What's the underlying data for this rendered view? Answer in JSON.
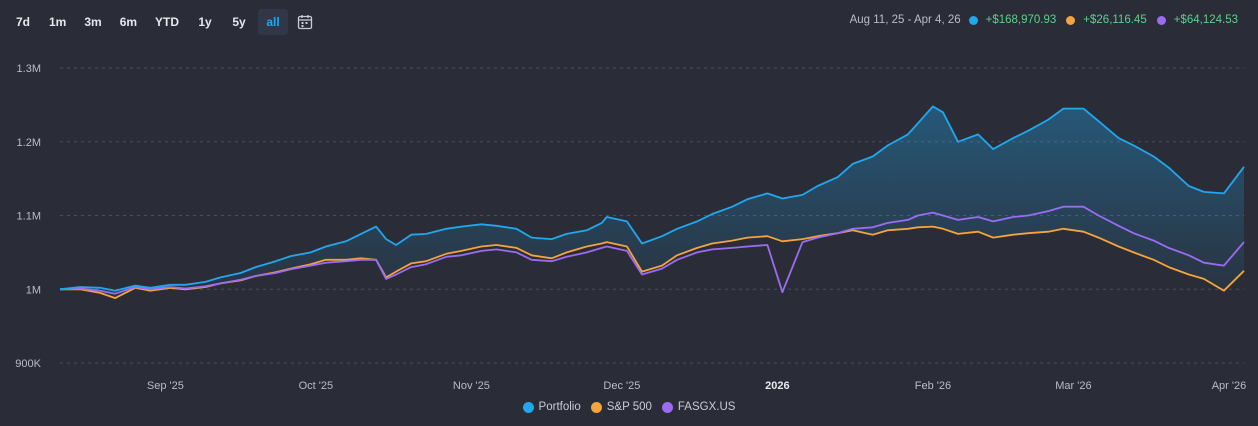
{
  "toolbar": {
    "ranges": [
      "7d",
      "1m",
      "3m",
      "6m",
      "YTD",
      "1y",
      "5y",
      "all"
    ],
    "active": "all",
    "calendar_icon": "calendar-icon"
  },
  "summary": {
    "date_range": "Aug 11, 25 - Apr 4, 26",
    "items": [
      {
        "value": "+$168,970.93",
        "color": "#1fa8ee"
      },
      {
        "value": "+$26,116.45",
        "color": "#f5a33b"
      },
      {
        "value": "+$64,124.53",
        "color": "#9b6cf3"
      }
    ]
  },
  "chart_data": {
    "type": "line",
    "x_range": [
      "2025-08-11",
      "2026-04-04"
    ],
    "ylim": [
      900000,
      1300000
    ],
    "y_ticks": [
      {
        "value": 900000,
        "label": "900K"
      },
      {
        "value": 1000000,
        "label": "1M"
      },
      {
        "value": 1100000,
        "label": "1.1M"
      },
      {
        "value": 1200000,
        "label": "1.2M"
      },
      {
        "value": 1300000,
        "label": "1.3M"
      }
    ],
    "x_ticks": [
      {
        "date": "2025-09-01",
        "label": "Sep '25",
        "bold": false
      },
      {
        "date": "2025-10-01",
        "label": "Oct '25",
        "bold": false
      },
      {
        "date": "2025-11-01",
        "label": "Nov '25",
        "bold": false
      },
      {
        "date": "2025-12-01",
        "label": "Dec '25",
        "bold": false
      },
      {
        "date": "2026-01-01",
        "label": "2026",
        "bold": true
      },
      {
        "date": "2026-02-01",
        "label": "Feb '26",
        "bold": false
      },
      {
        "date": "2026-03-01",
        "label": "Mar '26",
        "bold": false
      },
      {
        "date": "2026-04-01",
        "label": "Apr '26",
        "bold": false
      }
    ],
    "grid": true,
    "legend": "bottom-center",
    "series": [
      {
        "name": "Portfolio",
        "color": "#1fa8ee",
        "fill": true,
        "points": [
          [
            "2025-08-11",
            1000000
          ],
          [
            "2025-08-15",
            1003000
          ],
          [
            "2025-08-19",
            1002000
          ],
          [
            "2025-08-22",
            998000
          ],
          [
            "2025-08-26",
            1005000
          ],
          [
            "2025-08-29",
            1002000
          ],
          [
            "2025-09-02",
            1006000
          ],
          [
            "2025-09-05",
            1006000
          ],
          [
            "2025-09-09",
            1010000
          ],
          [
            "2025-09-12",
            1016000
          ],
          [
            "2025-09-16",
            1022000
          ],
          [
            "2025-09-19",
            1030000
          ],
          [
            "2025-09-23",
            1038000
          ],
          [
            "2025-09-26",
            1045000
          ],
          [
            "2025-09-30",
            1050000
          ],
          [
            "2025-10-03",
            1058000
          ],
          [
            "2025-10-07",
            1065000
          ],
          [
            "2025-10-10",
            1075000
          ],
          [
            "2025-10-13",
            1085000
          ],
          [
            "2025-10-15",
            1068000
          ],
          [
            "2025-10-17",
            1060000
          ],
          [
            "2025-10-20",
            1074000
          ],
          [
            "2025-10-23",
            1075000
          ],
          [
            "2025-10-27",
            1082000
          ],
          [
            "2025-10-30",
            1085000
          ],
          [
            "2025-11-03",
            1088000
          ],
          [
            "2025-11-06",
            1086000
          ],
          [
            "2025-11-10",
            1082000
          ],
          [
            "2025-11-13",
            1070000
          ],
          [
            "2025-11-17",
            1068000
          ],
          [
            "2025-11-20",
            1075000
          ],
          [
            "2025-11-24",
            1080000
          ],
          [
            "2025-11-27",
            1090000
          ],
          [
            "2025-11-28",
            1098000
          ],
          [
            "2025-12-02",
            1092000
          ],
          [
            "2025-12-05",
            1062000
          ],
          [
            "2025-12-09",
            1072000
          ],
          [
            "2025-12-12",
            1082000
          ],
          [
            "2025-12-16",
            1092000
          ],
          [
            "2025-12-19",
            1102000
          ],
          [
            "2025-12-23",
            1112000
          ],
          [
            "2025-12-26",
            1122000
          ],
          [
            "2025-12-30",
            1130000
          ],
          [
            "2026-01-02",
            1123000
          ],
          [
            "2026-01-06",
            1128000
          ],
          [
            "2026-01-09",
            1140000
          ],
          [
            "2026-01-13",
            1152000
          ],
          [
            "2026-01-16",
            1170000
          ],
          [
            "2026-01-20",
            1180000
          ],
          [
            "2026-01-23",
            1195000
          ],
          [
            "2026-01-27",
            1210000
          ],
          [
            "2026-01-29",
            1225000
          ],
          [
            "2026-02-01",
            1248000
          ],
          [
            "2026-02-03",
            1240000
          ],
          [
            "2026-02-06",
            1200000
          ],
          [
            "2026-02-10",
            1210000
          ],
          [
            "2026-02-13",
            1190000
          ],
          [
            "2026-02-17",
            1205000
          ],
          [
            "2026-02-20",
            1215000
          ],
          [
            "2026-02-24",
            1230000
          ],
          [
            "2026-02-27",
            1245000
          ],
          [
            "2026-03-03",
            1245000
          ],
          [
            "2026-03-06",
            1228000
          ],
          [
            "2026-03-10",
            1205000
          ],
          [
            "2026-03-13",
            1195000
          ],
          [
            "2026-03-17",
            1180000
          ],
          [
            "2026-03-20",
            1165000
          ],
          [
            "2026-03-24",
            1140000
          ],
          [
            "2026-03-27",
            1132000
          ],
          [
            "2026-03-31",
            1130000
          ],
          [
            "2026-04-04",
            1166000
          ]
        ]
      },
      {
        "name": "S&P 500",
        "color": "#f5a33b",
        "fill": false,
        "points": [
          [
            "2025-08-11",
            1000000
          ],
          [
            "2025-08-15",
            1000000
          ],
          [
            "2025-08-19",
            995000
          ],
          [
            "2025-08-22",
            988000
          ],
          [
            "2025-08-26",
            1002000
          ],
          [
            "2025-08-29",
            998000
          ],
          [
            "2025-09-02",
            1002000
          ],
          [
            "2025-09-05",
            1000000
          ],
          [
            "2025-09-09",
            1003000
          ],
          [
            "2025-09-12",
            1008000
          ],
          [
            "2025-09-16",
            1012000
          ],
          [
            "2025-09-19",
            1018000
          ],
          [
            "2025-09-23",
            1023000
          ],
          [
            "2025-09-26",
            1028000
          ],
          [
            "2025-09-30",
            1034000
          ],
          [
            "2025-10-03",
            1040000
          ],
          [
            "2025-10-07",
            1040000
          ],
          [
            "2025-10-10",
            1042000
          ],
          [
            "2025-10-13",
            1040000
          ],
          [
            "2025-10-15",
            1016000
          ],
          [
            "2025-10-17",
            1024000
          ],
          [
            "2025-10-20",
            1035000
          ],
          [
            "2025-10-23",
            1038000
          ],
          [
            "2025-10-27",
            1048000
          ],
          [
            "2025-10-30",
            1052000
          ],
          [
            "2025-11-03",
            1058000
          ],
          [
            "2025-11-06",
            1060000
          ],
          [
            "2025-11-10",
            1056000
          ],
          [
            "2025-11-13",
            1046000
          ],
          [
            "2025-11-17",
            1042000
          ],
          [
            "2025-11-20",
            1050000
          ],
          [
            "2025-11-24",
            1058000
          ],
          [
            "2025-11-27",
            1062000
          ],
          [
            "2025-11-28",
            1064000
          ],
          [
            "2025-12-02",
            1058000
          ],
          [
            "2025-12-05",
            1024000
          ],
          [
            "2025-12-09",
            1032000
          ],
          [
            "2025-12-12",
            1046000
          ],
          [
            "2025-12-16",
            1056000
          ],
          [
            "2025-12-19",
            1062000
          ],
          [
            "2025-12-23",
            1066000
          ],
          [
            "2025-12-26",
            1070000
          ],
          [
            "2025-12-30",
            1072000
          ],
          [
            "2026-01-02",
            1065000
          ],
          [
            "2026-01-06",
            1068000
          ],
          [
            "2026-01-09",
            1072000
          ],
          [
            "2026-01-13",
            1076000
          ],
          [
            "2026-01-16",
            1080000
          ],
          [
            "2026-01-20",
            1074000
          ],
          [
            "2026-01-23",
            1080000
          ],
          [
            "2026-01-27",
            1082000
          ],
          [
            "2026-01-29",
            1084000
          ],
          [
            "2026-02-01",
            1085000
          ],
          [
            "2026-02-03",
            1082000
          ],
          [
            "2026-02-06",
            1075000
          ],
          [
            "2026-02-10",
            1078000
          ],
          [
            "2026-02-13",
            1070000
          ],
          [
            "2026-02-17",
            1074000
          ],
          [
            "2026-02-20",
            1076000
          ],
          [
            "2026-02-24",
            1078000
          ],
          [
            "2026-02-27",
            1082000
          ],
          [
            "2026-03-03",
            1078000
          ],
          [
            "2026-03-06",
            1070000
          ],
          [
            "2026-03-10",
            1058000
          ],
          [
            "2026-03-13",
            1050000
          ],
          [
            "2026-03-17",
            1040000
          ],
          [
            "2026-03-20",
            1030000
          ],
          [
            "2026-03-24",
            1020000
          ],
          [
            "2026-03-27",
            1014000
          ],
          [
            "2026-03-31",
            998000
          ],
          [
            "2026-04-04",
            1025000
          ]
        ]
      },
      {
        "name": "FASGX.US",
        "color": "#9b6cf3",
        "fill": false,
        "points": [
          [
            "2025-08-11",
            1000000
          ],
          [
            "2025-08-15",
            1001000
          ],
          [
            "2025-08-19",
            998000
          ],
          [
            "2025-08-22",
            994000
          ],
          [
            "2025-08-26",
            1003000
          ],
          [
            "2025-08-29",
            1000000
          ],
          [
            "2025-09-02",
            1003000
          ],
          [
            "2025-09-05",
            1001000
          ],
          [
            "2025-09-09",
            1004000
          ],
          [
            "2025-09-12",
            1008000
          ],
          [
            "2025-09-16",
            1013000
          ],
          [
            "2025-09-19",
            1018000
          ],
          [
            "2025-09-23",
            1022000
          ],
          [
            "2025-09-26",
            1027000
          ],
          [
            "2025-09-30",
            1032000
          ],
          [
            "2025-10-03",
            1036000
          ],
          [
            "2025-10-07",
            1038000
          ],
          [
            "2025-10-10",
            1040000
          ],
          [
            "2025-10-13",
            1040000
          ],
          [
            "2025-10-15",
            1014000
          ],
          [
            "2025-10-17",
            1020000
          ],
          [
            "2025-10-20",
            1030000
          ],
          [
            "2025-10-23",
            1034000
          ],
          [
            "2025-10-27",
            1044000
          ],
          [
            "2025-10-30",
            1046000
          ],
          [
            "2025-11-03",
            1052000
          ],
          [
            "2025-11-06",
            1054000
          ],
          [
            "2025-11-10",
            1050000
          ],
          [
            "2025-11-13",
            1040000
          ],
          [
            "2025-11-17",
            1038000
          ],
          [
            "2025-11-20",
            1044000
          ],
          [
            "2025-11-24",
            1050000
          ],
          [
            "2025-11-27",
            1056000
          ],
          [
            "2025-11-28",
            1058000
          ],
          [
            "2025-12-02",
            1052000
          ],
          [
            "2025-12-05",
            1020000
          ],
          [
            "2025-12-09",
            1028000
          ],
          [
            "2025-12-12",
            1040000
          ],
          [
            "2025-12-16",
            1050000
          ],
          [
            "2025-12-19",
            1054000
          ],
          [
            "2025-12-23",
            1056000
          ],
          [
            "2025-12-26",
            1058000
          ],
          [
            "2025-12-30",
            1060000
          ],
          [
            "2026-01-02",
            996000
          ],
          [
            "2026-01-06",
            1064000
          ],
          [
            "2026-01-09",
            1070000
          ],
          [
            "2026-01-13",
            1076000
          ],
          [
            "2026-01-16",
            1082000
          ],
          [
            "2026-01-20",
            1084000
          ],
          [
            "2026-01-23",
            1090000
          ],
          [
            "2026-01-27",
            1094000
          ],
          [
            "2026-01-29",
            1100000
          ],
          [
            "2026-02-01",
            1104000
          ],
          [
            "2026-02-03",
            1100000
          ],
          [
            "2026-02-06",
            1094000
          ],
          [
            "2026-02-10",
            1098000
          ],
          [
            "2026-02-13",
            1092000
          ],
          [
            "2026-02-17",
            1098000
          ],
          [
            "2026-02-20",
            1100000
          ],
          [
            "2026-02-24",
            1106000
          ],
          [
            "2026-02-27",
            1112000
          ],
          [
            "2026-03-03",
            1112000
          ],
          [
            "2026-03-06",
            1100000
          ],
          [
            "2026-03-10",
            1086000
          ],
          [
            "2026-03-13",
            1076000
          ],
          [
            "2026-03-17",
            1066000
          ],
          [
            "2026-03-20",
            1056000
          ],
          [
            "2026-03-24",
            1046000
          ],
          [
            "2026-03-27",
            1036000
          ],
          [
            "2026-03-31",
            1032000
          ],
          [
            "2026-04-04",
            1064000
          ]
        ]
      }
    ]
  }
}
